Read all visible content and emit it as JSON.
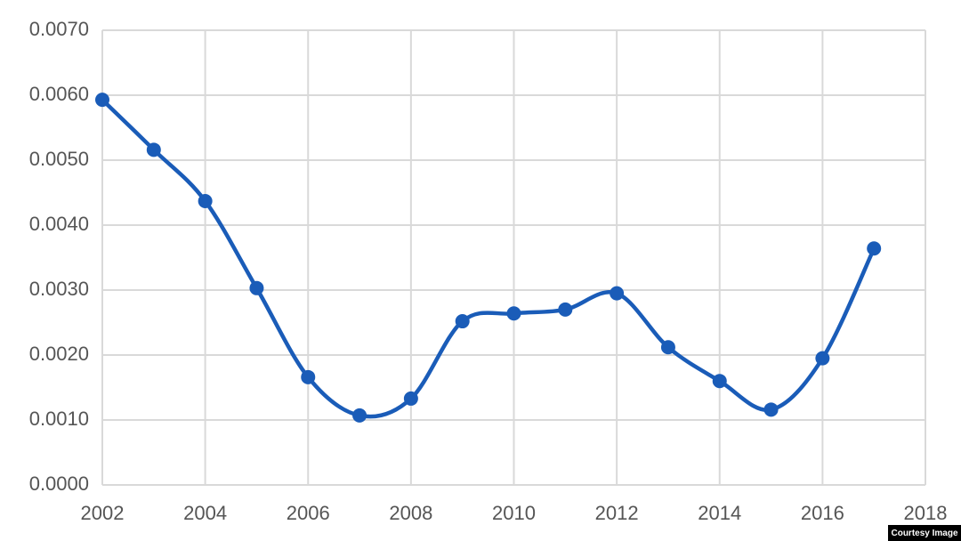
{
  "chart_data": {
    "type": "line",
    "x": [
      2002,
      2003,
      2004,
      2005,
      2006,
      2007,
      2008,
      2009,
      2010,
      2011,
      2012,
      2013,
      2014,
      2015,
      2016,
      2017
    ],
    "series": [
      {
        "color": "#1a5cb8",
        "values": [
          0.00593,
          0.00516,
          0.00437,
          0.00303,
          0.00166,
          0.00107,
          0.00133,
          0.00252,
          0.00264,
          0.0027,
          0.00295,
          0.00212,
          0.0016,
          0.00116,
          0.00195,
          0.00364
        ]
      }
    ],
    "xlim": [
      2002,
      2018
    ],
    "xticks": [
      2002,
      2004,
      2006,
      2008,
      2010,
      2012,
      2014,
      2016,
      2018
    ],
    "ylim": [
      0,
      0.007
    ],
    "yticks": [
      {
        "value": 0,
        "label": "0.0000"
      },
      {
        "value": 0.001,
        "label": "0.0010"
      },
      {
        "value": 0.002,
        "label": "0.0020"
      },
      {
        "value": 0.003,
        "label": "0.0030"
      },
      {
        "value": 0.004,
        "label": "0.0040"
      },
      {
        "value": 0.005,
        "label": "0.0050"
      },
      {
        "value": 0.006,
        "label": "0.0060"
      },
      {
        "value": 0.007,
        "label": "0.0070"
      }
    ],
    "grid": true,
    "smooth": true
  },
  "credit": "Courtesy Image"
}
